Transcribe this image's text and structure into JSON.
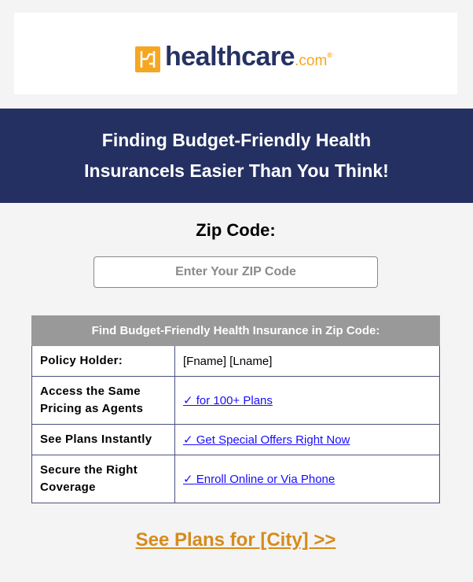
{
  "logo": {
    "brand": "healthcare",
    "suffix": ".com",
    "registered": "®",
    "colors": {
      "mark": "#f5a623",
      "text": "#263264"
    }
  },
  "banner": {
    "line1": "Finding Budget-Friendly Health",
    "line2": "InsuranceIs Easier Than You Think!",
    "background": "#253062"
  },
  "zip": {
    "label": "Zip Code:",
    "placeholder": "Enter Your ZIP Code",
    "value": ""
  },
  "table": {
    "header": "Find Budget-Friendly Health Insurance in Zip Code:",
    "rows": [
      {
        "label": "Policy Holder:",
        "value": "[Fname] [Lname]"
      },
      {
        "label": "Access the Same Pricing as Agents",
        "value": "✓ for 100+ Plans"
      },
      {
        "label": "See Plans Instantly",
        "value": "✓ Get Special Offers Right Now"
      },
      {
        "label": "Secure the Right Coverage",
        "value": "✓ Enroll Online or Via Phone"
      }
    ]
  },
  "cta": {
    "label": "See Plans for [City] >>",
    "color": "#d68b1b"
  }
}
